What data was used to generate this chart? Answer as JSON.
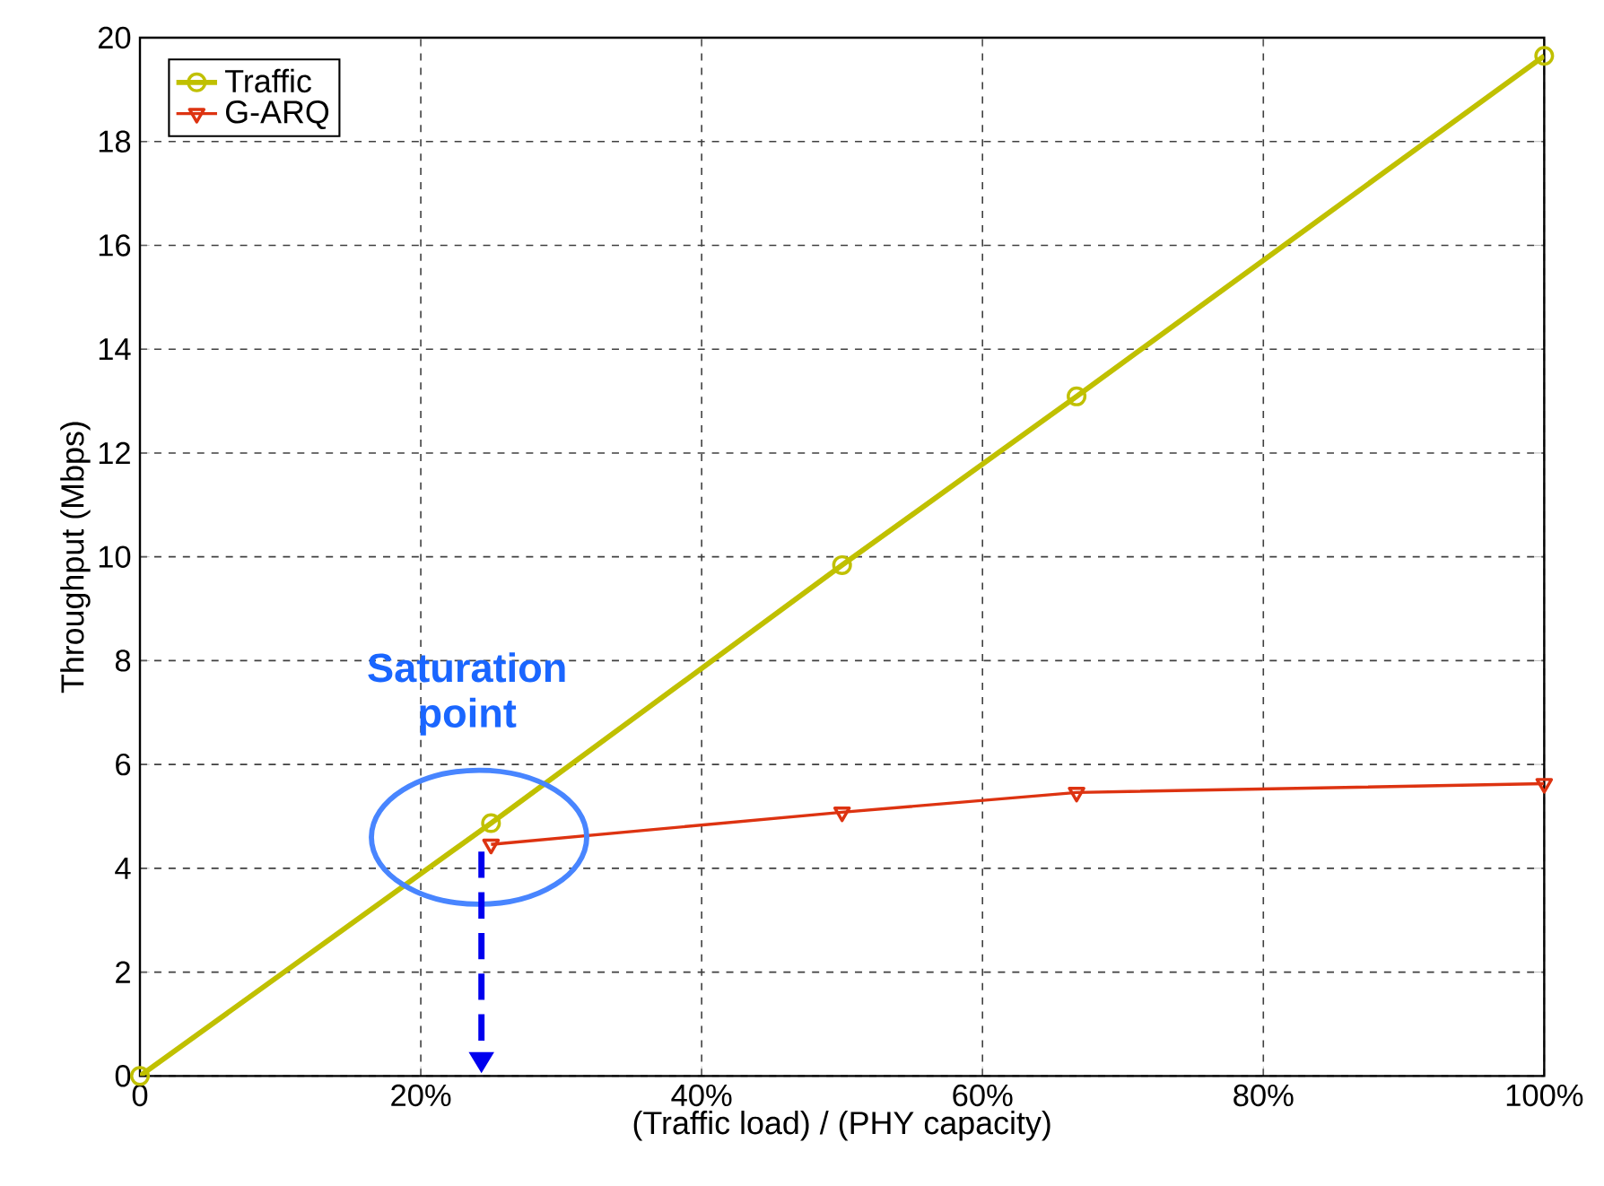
{
  "chart_data": {
    "type": "line",
    "xlabel": "(Traffic load) / (PHY capacity)",
    "ylabel": "Throughput (Mbps)",
    "xlim": [
      0,
      100
    ],
    "ylim": [
      0,
      20
    ],
    "xticks": [
      0,
      {
        "value": 20,
        "label": "20%"
      },
      {
        "value": 40,
        "label": "40%"
      },
      {
        "value": 60,
        "label": "60%"
      },
      {
        "value": 80,
        "label": "80%"
      },
      {
        "value": 100,
        "label": "100%"
      }
    ],
    "yticks": [
      0,
      2,
      4,
      6,
      8,
      10,
      12,
      14,
      16,
      18,
      20
    ],
    "grid": true,
    "legend": "top left",
    "line_style": "solid",
    "series": [
      {
        "name": "Traffic",
        "color": "#c0c000",
        "marker": "circle",
        "x": [
          0,
          25,
          50,
          66.7,
          100
        ],
        "values": [
          0,
          4.87,
          9.84,
          13.09,
          19.65
        ]
      },
      {
        "name": "G-ARQ",
        "color": "#dd3311",
        "marker": "triangle",
        "x": [
          25,
          50,
          66.7,
          100
        ],
        "values": [
          4.46,
          5.08,
          5.46,
          5.63
        ]
      }
    ],
    "annotations": [
      "Saturation point"
    ]
  }
}
